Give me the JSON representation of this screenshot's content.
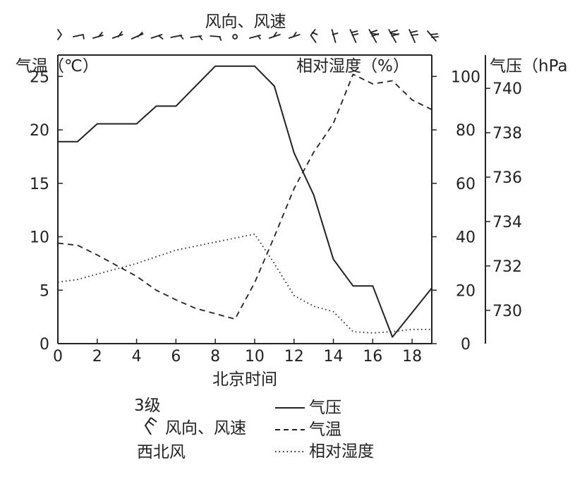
{
  "chart_data": {
    "type": "line",
    "title": "风向、风速",
    "xlabel": "北京时间",
    "x_ticks": [
      0,
      2,
      4,
      6,
      8,
      10,
      12,
      14,
      16,
      18
    ],
    "xlim": [
      0,
      19
    ],
    "axes": {
      "left": {
        "label": "气温（℃）",
        "ylim": [
          0,
          27
        ],
        "ticks": [
          0,
          5,
          10,
          15,
          20,
          25
        ]
      },
      "middle": {
        "label": "相对湿度（%）",
        "ylim": [
          0,
          108
        ],
        "ticks": [
          0,
          20,
          40,
          60,
          80,
          100
        ]
      },
      "right": {
        "label": "气压（hPa",
        "ylim": [
          728.5,
          741.5
        ],
        "ticks": [
          730,
          732,
          734,
          736,
          738,
          740
        ]
      }
    },
    "series": [
      {
        "name": "气压",
        "axis": "right",
        "style": "solid",
        "x": [
          0,
          1,
          2,
          3,
          4,
          5,
          6,
          7,
          8,
          9,
          10,
          11,
          12,
          13,
          14,
          15,
          16,
          17,
          18,
          19
        ],
        "y": [
          737.6,
          737.6,
          738.4,
          738.4,
          738.4,
          739.2,
          739.2,
          740.1,
          741.0,
          741.0,
          741.0,
          740.1,
          737.1,
          735.2,
          732.3,
          731.1,
          731.1,
          728.8,
          729.9,
          731.0
        ]
      },
      {
        "name": "气温",
        "axis": "left",
        "style": "dashed",
        "x": [
          0,
          1,
          2,
          3,
          4,
          5,
          6,
          7,
          8,
          9,
          10,
          11,
          12,
          13,
          14,
          15,
          16,
          17,
          18,
          19
        ],
        "y": [
          9.4,
          9.2,
          8.3,
          7.3,
          6.3,
          5.0,
          4.1,
          3.3,
          2.8,
          2.3,
          5.7,
          10.0,
          14.5,
          17.9,
          20.6,
          25.2,
          24.3,
          24.6,
          22.8,
          21.9
        ]
      },
      {
        "name": "相对湿度",
        "axis": "middle",
        "style": "dotted",
        "x": [
          0,
          1,
          2,
          3,
          4,
          5,
          6,
          7,
          8,
          9,
          10,
          11,
          12,
          13,
          14,
          15,
          16,
          17,
          18,
          19
        ],
        "y": [
          23,
          24,
          26,
          28,
          30,
          32.5,
          35,
          36.5,
          38,
          39.5,
          41,
          30,
          18,
          14,
          12,
          4.5,
          4,
          4.5,
          5.3,
          5.3
        ]
      }
    ],
    "legend": {
      "position": "bottom",
      "wind_example": {
        "top": "3级",
        "middle": "风向、风速",
        "bottom": "西北风"
      }
    },
    "wind_barbs_position": "top"
  }
}
